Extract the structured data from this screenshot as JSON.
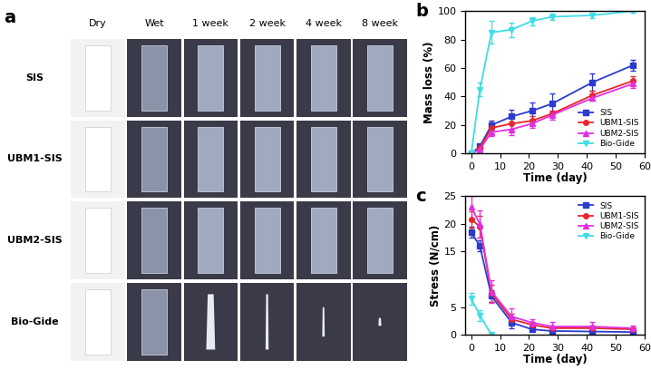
{
  "photo_grid": {
    "label": "a",
    "columns": [
      "Dry",
      "Wet",
      "1 week",
      "2 week",
      "4 week",
      "8 week"
    ],
    "rows": [
      "SIS",
      "UBM1-SIS",
      "UBM2-SIS",
      "Bio-Gide"
    ]
  },
  "chart_data": [
    {
      "type": "line",
      "title": "b",
      "x_label": "Time (day)",
      "y_label": "Mass loss (%)",
      "x": [
        0,
        3,
        7,
        14,
        21,
        28,
        42,
        56
      ],
      "xlim": [
        -2,
        60
      ],
      "xticks": [
        0,
        10,
        20,
        30,
        40,
        50,
        60
      ],
      "ylim": [
        0,
        100
      ],
      "yticks": [
        0,
        20,
        40,
        60,
        80,
        100
      ],
      "grid": false,
      "legend": "lower right",
      "series": [
        {
          "name": "SIS",
          "color": "#2b3bd0",
          "marker": "square",
          "line_style": "solid",
          "values": [
            0,
            5,
            20,
            26,
            30,
            35,
            50,
            62
          ],
          "errors": [
            0,
            1,
            3,
            5,
            6,
            7,
            6,
            4
          ]
        },
        {
          "name": "UBM1-SIS",
          "color": "#e8262a",
          "marker": "circle",
          "line_style": "solid",
          "values": [
            0,
            4,
            18,
            21,
            23,
            28,
            41,
            51
          ],
          "errors": [
            0,
            1,
            4,
            4,
            3,
            2,
            3,
            3
          ]
        },
        {
          "name": "UBM2-SIS",
          "color": "#e22fe2",
          "marker": "triangle_up",
          "line_style": "solid",
          "values": [
            0,
            3,
            15,
            17,
            21,
            27,
            39,
            49
          ],
          "errors": [
            0,
            1,
            3,
            4,
            3,
            3,
            2,
            3
          ]
        },
        {
          "name": "Bio-Gide",
          "color": "#3fdde6",
          "marker": "triangle_down",
          "line_style": "solid",
          "values": [
            0,
            45,
            85,
            87,
            93,
            96,
            97,
            100
          ],
          "errors": [
            0,
            5,
            8,
            5,
            3,
            2,
            2,
            1
          ]
        }
      ]
    },
    {
      "type": "line",
      "title": "c",
      "x_label": "Time (day)",
      "y_label": "Stress (N/cm)",
      "x": [
        0,
        3,
        7,
        14,
        21,
        28,
        42,
        56
      ],
      "xlim": [
        -2,
        60
      ],
      "xticks": [
        0,
        10,
        20,
        30,
        40,
        50,
        60
      ],
      "ylim": [
        0,
        25
      ],
      "yticks": [
        0,
        5,
        15,
        20,
        25
      ],
      "grid": false,
      "legend": "upper right",
      "series": [
        {
          "name": "SIS",
          "color": "#2b3bd0",
          "marker": "square",
          "line_style": "solid",
          "values": [
            18.5,
            16,
            7,
            2.2,
            1,
            0.7,
            0.6,
            0.5
          ],
          "errors": [
            1,
            1,
            1,
            1,
            0.3,
            0.2,
            0.2,
            0.2
          ]
        },
        {
          "name": "UBM1-SIS",
          "color": "#e8262a",
          "marker": "circle",
          "line_style": "solid",
          "values": [
            20.8,
            19.5,
            7.5,
            2.8,
            1.8,
            1.2,
            1.2,
            1.0
          ],
          "errors": [
            1.5,
            2,
            1.5,
            1,
            0.5,
            0.3,
            0.5,
            0.3
          ]
        },
        {
          "name": "UBM2-SIS",
          "color": "#e22fe2",
          "marker": "triangle_up",
          "line_style": "solid",
          "values": [
            23,
            20,
            7.8,
            3.3,
            2.2,
            1.5,
            1.5,
            1.2
          ],
          "errors": [
            2,
            2.5,
            2,
            1.5,
            0.6,
            0.8,
            0.8,
            0.5
          ]
        },
        {
          "name": "Bio-Gide",
          "color": "#3fdde6",
          "marker": "triangle_down",
          "line_style": "solid",
          "values": [
            6.5,
            3.5,
            0,
            null,
            null,
            null,
            null,
            null
          ],
          "errors": [
            1,
            1,
            0,
            null,
            null,
            null,
            null,
            null
          ]
        }
      ]
    }
  ]
}
